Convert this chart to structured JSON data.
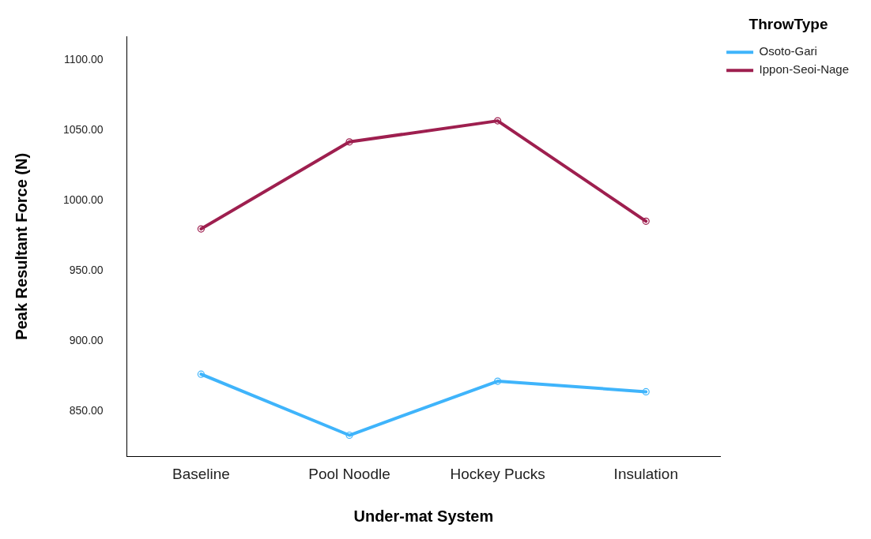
{
  "chart_data": {
    "type": "line",
    "xlabel": "Under-mat System",
    "ylabel": "Peak Resultant Force (N)",
    "legend_title": "ThrowType",
    "categories": [
      "Baseline",
      "Pool Noodle",
      "Hockey Pucks",
      "Insulation"
    ],
    "series": [
      {
        "name": "Osoto-Gari",
        "color": "#3fb4fb",
        "values": [
          876.5,
          833,
          871.5,
          864
        ]
      },
      {
        "name": "Ippon-Seoi-Nage",
        "color": "#9e1f4f",
        "values": [
          980,
          1042,
          1057,
          985.5
        ]
      }
    ],
    "ylim": [
      818,
      1117
    ],
    "yticks": [
      {
        "value": 850,
        "label": "850.00"
      },
      {
        "value": 900,
        "label": "900.00"
      },
      {
        "value": 950,
        "label": "950.00"
      },
      {
        "value": 1000,
        "label": "1000.00"
      },
      {
        "value": 1050,
        "label": "1050.00"
      },
      {
        "value": 1100,
        "label": "1100.00"
      }
    ],
    "grid": false,
    "legend": "top right",
    "marker": "circle",
    "line_style": "solid"
  }
}
